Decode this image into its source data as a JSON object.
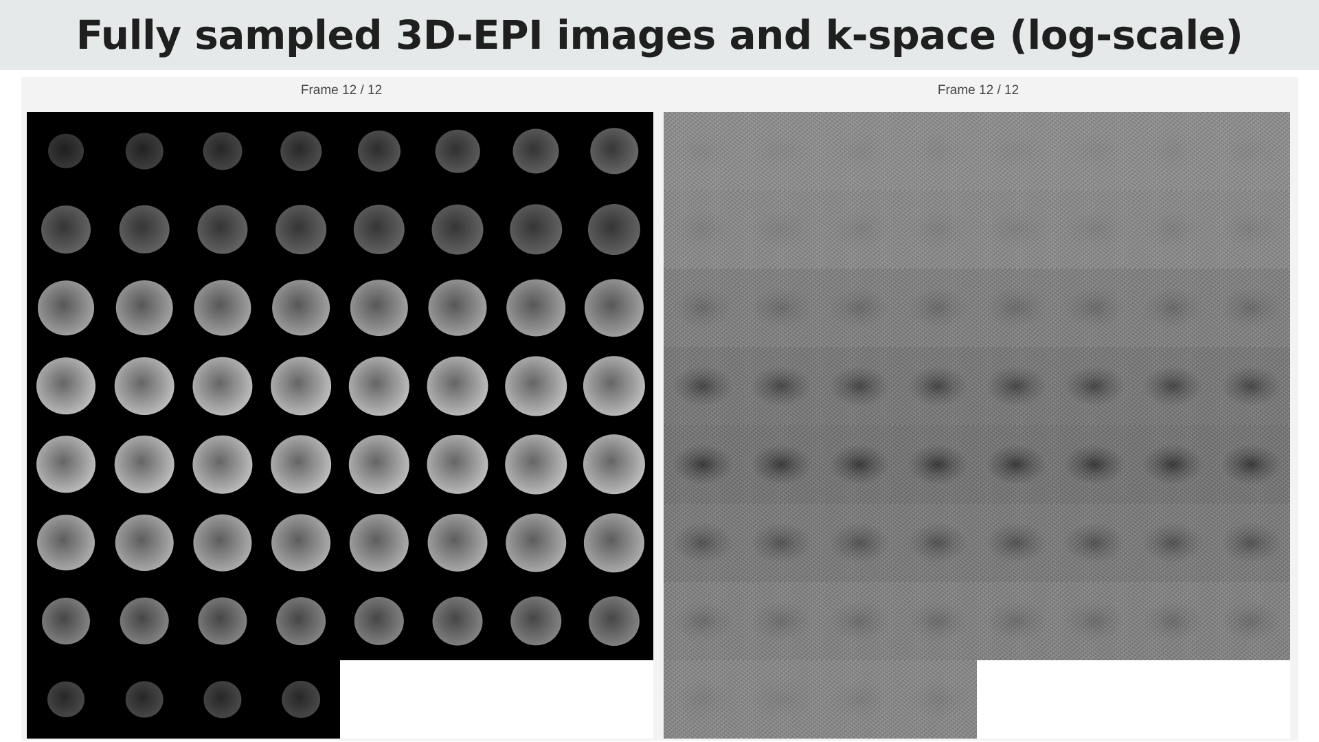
{
  "page": {
    "title": "Fully sampled 3D-EPI images and k-space (log-scale)"
  },
  "viewers": [
    {
      "id": "images",
      "frame_label": "Frame 12 / 12",
      "tiles_shown": 60,
      "grid_columns": 8
    },
    {
      "id": "kspace",
      "frame_label": "Frame 12 / 12",
      "tiles_shown": 60,
      "grid_columns": 8
    }
  ],
  "colors": {
    "title_background": "#e6e9ea",
    "title_text": "#1f1f1f",
    "panel_background": "#f3f3f3",
    "image_background": "#000000",
    "kspace_base": "#8a8a8a"
  }
}
